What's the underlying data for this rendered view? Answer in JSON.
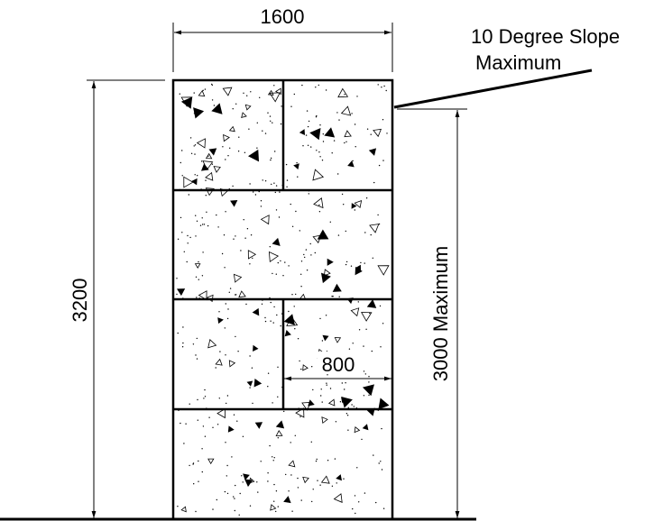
{
  "dimensions": {
    "top_width": "1600",
    "overall_height": "3200",
    "max_height": "3000 Maximum",
    "inner_width": "800"
  },
  "annotations": {
    "slope_line1": "10 Degree Slope",
    "slope_line2": "Maximum"
  },
  "colors": {
    "line": "#000000",
    "background": "#ffffff"
  }
}
